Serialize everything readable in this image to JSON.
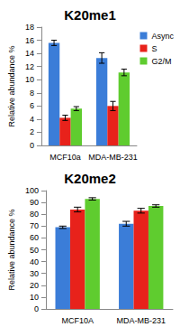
{
  "chart_data": [
    {
      "type": "bar",
      "title": "K20me1",
      "y_label": "Relative abundance %",
      "categories": [
        "MCF10a",
        "MDA-MB-231"
      ],
      "series": [
        {
          "name": "Async",
          "color": "#3b7dd8",
          "values": [
            15.6,
            13.3
          ],
          "errors": [
            0.4,
            0.8
          ]
        },
        {
          "name": "S",
          "color": "#e8221b",
          "values": [
            4.2,
            6.0
          ],
          "errors": [
            0.4,
            0.7
          ]
        },
        {
          "name": "G2/M",
          "color": "#5fcc2f",
          "values": [
            5.6,
            11.1
          ],
          "errors": [
            0.3,
            0.5
          ]
        }
      ],
      "ylim": [
        0,
        18
      ],
      "yticks": [
        0,
        2,
        4,
        6,
        8,
        10,
        12,
        14,
        16,
        18
      ],
      "grid": false,
      "legend": "upper right"
    },
    {
      "type": "bar",
      "title": "K20me2",
      "y_label": "Relative abundance %",
      "categories": [
        "MCF10A",
        "MDA-MB-231"
      ],
      "series": [
        {
          "color": "#3b7dd8",
          "values": [
            69,
            72
          ],
          "errors": [
            1,
            2
          ]
        },
        {
          "color": "#e8221b",
          "values": [
            84,
            83
          ],
          "errors": [
            2,
            2
          ]
        },
        {
          "color": "#5fcc2f",
          "values": [
            93,
            87
          ],
          "errors": [
            1,
            1
          ]
        }
      ],
      "ylim": [
        0,
        100
      ],
      "yticks": [
        0,
        10,
        20,
        30,
        40,
        50,
        60,
        70,
        80,
        90,
        100
      ],
      "grid": false
    }
  ]
}
